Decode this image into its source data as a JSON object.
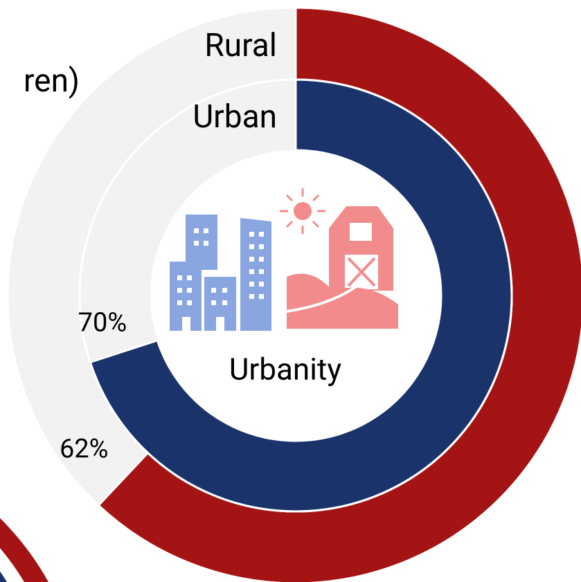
{
  "chart_data": {
    "type": "donut",
    "title": "ren)",
    "center_label": "Urbanity",
    "remainder_color": "#f2f2f2",
    "series": [
      {
        "name": "Rural",
        "color": "#a51414",
        "values": [
          62
        ],
        "value_labels": [
          "62%"
        ]
      },
      {
        "name": "Urban",
        "color": "#1a336b",
        "values": [
          70
        ],
        "value_labels": [
          "70%"
        ]
      }
    ]
  }
}
